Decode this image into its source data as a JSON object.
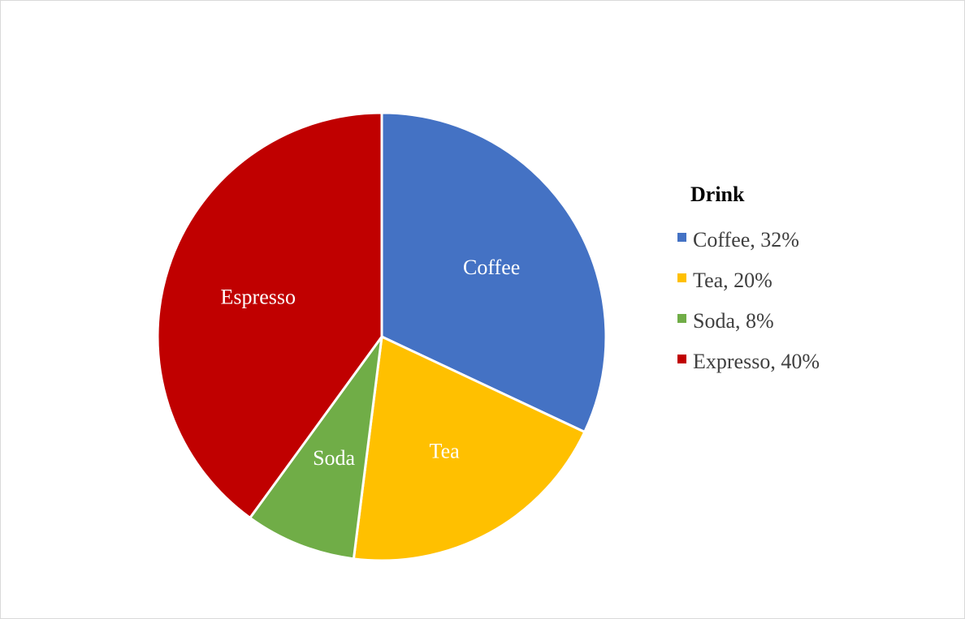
{
  "chart_data": {
    "type": "pie",
    "title": "",
    "legend_title": "Drink",
    "legend_position": "right",
    "start_angle_deg": 0,
    "direction": "clockwise",
    "slices": [
      {
        "label": "Coffee",
        "legend": "Coffee, 32%",
        "value": 32,
        "color": "#4472C4"
      },
      {
        "label": "Tea",
        "legend": "Tea, 20%",
        "value": 20,
        "color": "#FFC000"
      },
      {
        "label": "Soda",
        "legend": "Soda, 8%",
        "value": 8,
        "color": "#70AD47"
      },
      {
        "label": "Espresso",
        "legend": "Expresso, 40%",
        "value": 40,
        "color": "#C00000"
      }
    ]
  }
}
